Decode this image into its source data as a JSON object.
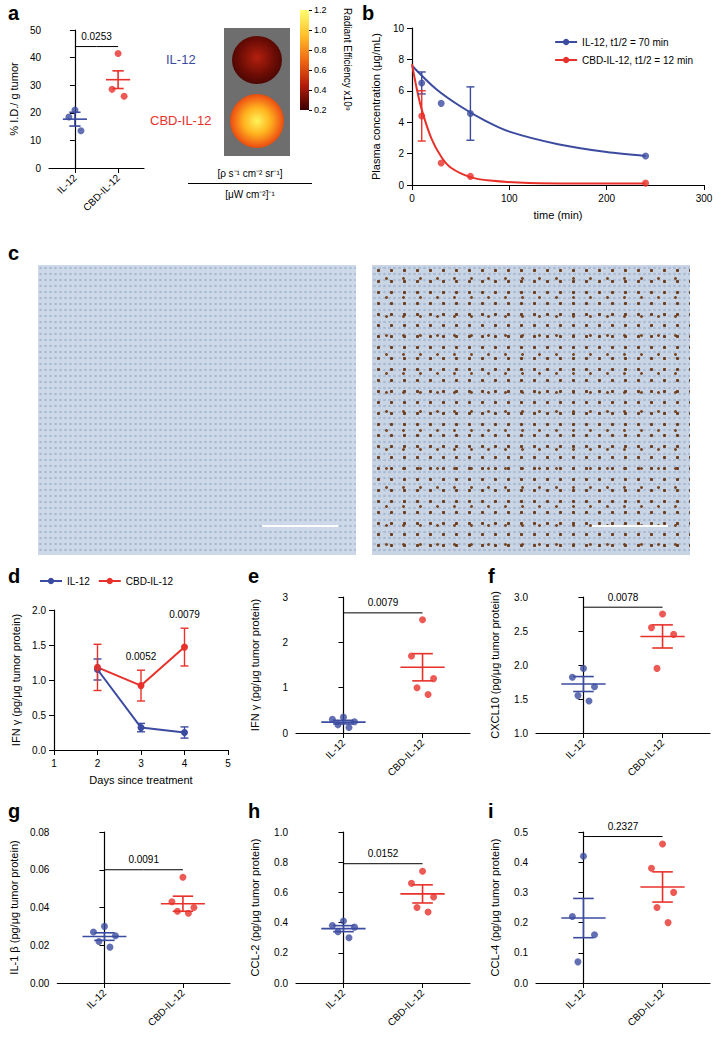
{
  "chart_data": [
    {
      "panel": "a",
      "type": "scatter",
      "categories": [
        "IL-12",
        "CBD-IL-12"
      ],
      "colors": [
        "#3b4ba0",
        "#e8312a"
      ],
      "points": [
        [
          21,
          18.5,
          13.5
        ],
        [
          41.5,
          28.5,
          26
        ]
      ],
      "means": [
        17.7,
        32
      ],
      "errors": [
        2.5,
        3.2
      ],
      "ylabel": "% I.D./ g tumor",
      "ylim": [
        0,
        50
      ],
      "yticks": [
        0,
        10,
        20,
        30,
        40,
        50
      ],
      "annotations": [
        {
          "text": "0.0253"
        }
      ]
    },
    {
      "panel": "a",
      "type": "image",
      "labels": [
        "IL-12",
        "CBD-IL-12"
      ],
      "colors": [
        "#3b4ba0",
        "#e8312a"
      ],
      "colorbar": {
        "range": [
          0.2,
          1.2
        ],
        "ticks": [
          1.2,
          {
            "value": 1,
            "label": "1.0"
          },
          0.8,
          0.6,
          0.4,
          0.2
        ],
        "label": "Radiant Efficiency x10⁹",
        "units": [
          "[ρ s⁻¹ cm⁻² sr⁻¹]",
          "[μW cm⁻²]⁻¹"
        ]
      }
    },
    {
      "panel": "b",
      "type": "line",
      "xlabel": "time (min)",
      "ylabel": "Plasma concentration (μg/mL)",
      "xlim": [
        0,
        300
      ],
      "xticks": [
        0,
        100,
        200,
        300
      ],
      "ylim": [
        0,
        10
      ],
      "yticks": [
        0,
        2,
        4,
        6,
        8,
        10
      ],
      "legend": "upper right",
      "series": [
        {
          "name": "IL-12, t1/2 = 70 min",
          "color": "#3b4ba0",
          "x": [
            10,
            30,
            60,
            240
          ],
          "values": [
            6.5,
            5.2,
            4.55,
            1.85
          ],
          "errors": [
            0.7,
            null,
            1.7,
            null
          ],
          "fit_x": [
            0,
            25,
            50,
            75,
            100,
            150,
            200,
            240
          ],
          "fit": [
            7.6,
            6.1,
            5.0,
            4.1,
            3.4,
            2.6,
            2.1,
            1.85
          ]
        },
        {
          "name": "CBD-IL-12, t1/2 = 12 min",
          "color": "#e8312a",
          "x": [
            10,
            30,
            60,
            240
          ],
          "values": [
            4.4,
            1.4,
            0.55,
            0.12
          ],
          "errors": [
            1.6,
            null,
            null,
            null
          ],
          "fit_x": [
            0,
            5,
            10,
            20,
            30,
            40,
            60,
            80,
            120,
            180,
            240
          ],
          "fit": [
            7.7,
            6.1,
            4.8,
            2.95,
            1.8,
            1.1,
            0.5,
            0.28,
            0.13,
            0.1,
            0.1
          ]
        }
      ]
    },
    {
      "panel": "c",
      "type": "image"
    },
    {
      "panel": "d",
      "type": "line",
      "xlabel": "Days since treatment",
      "ylabel": "IFN γ (pg/μg tumor protein)",
      "xlim": [
        1,
        5
      ],
      "xticks": [
        1,
        2,
        3,
        4,
        5
      ],
      "ylim": [
        0,
        2
      ],
      "yticks": [
        {
          "value": 0,
          "label": "0.0"
        },
        0.5,
        {
          "value": 1,
          "label": "1.0"
        },
        1.5,
        {
          "value": 2,
          "label": "2.0"
        }
      ],
      "legend": "top",
      "series": [
        {
          "name": "IL-12",
          "color": "#3b4ba0",
          "x": [
            2,
            3,
            4
          ],
          "values": [
            1.15,
            0.32,
            0.25
          ],
          "errors": [
            0.15,
            0.06,
            0.08
          ]
        },
        {
          "name": "CBD-IL-12",
          "color": "#e8312a",
          "x": [
            2,
            3,
            4
          ],
          "values": [
            1.18,
            0.92,
            1.47
          ],
          "errors": [
            0.33,
            0.22,
            0.27
          ]
        }
      ],
      "annotations": [
        {
          "text": "0.0052",
          "x": 3
        },
        {
          "text": "0.0079",
          "x": 4
        }
      ]
    },
    {
      "panel": "e",
      "type": "scatter",
      "categories": [
        "IL-12",
        "CBD-IL-12"
      ],
      "colors": [
        "#3b4ba0",
        "#e8312a"
      ],
      "points": [
        [
          0.35,
          0.3,
          0.25,
          0.18,
          0.12
        ],
        [
          2.5,
          1.7,
          1.2,
          1.0,
          0.85
        ]
      ],
      "means": [
        0.24,
        1.45
      ],
      "errors": [
        0.04,
        0.3
      ],
      "ylabel": "IFN γ (pg/μg tumor protein)",
      "ylim": [
        0,
        3
      ],
      "yticks": [
        0,
        1,
        2,
        3
      ],
      "annotations": [
        {
          "text": "0.0079"
        }
      ]
    },
    {
      "panel": "f",
      "type": "scatter",
      "categories": [
        "IL-12",
        "CBD-IL-12"
      ],
      "colors": [
        "#3b4ba0",
        "#e8312a"
      ],
      "points": [
        [
          1.95,
          1.82,
          1.68,
          1.55,
          1.47
        ],
        [
          2.75,
          2.55,
          2.45,
          1.95
        ]
      ],
      "means": [
        1.72,
        2.42
      ],
      "errors": [
        0.11,
        0.17
      ],
      "ylabel": "CXCL10 (pg/μg tumor protein)",
      "ylim": [
        1,
        3
      ],
      "yticks": [
        {
          "value": 1,
          "label": "1.0"
        },
        1.5,
        {
          "value": 2,
          "label": "2.0"
        },
        2.5,
        {
          "value": 3,
          "label": "3.0"
        }
      ],
      "annotations": [
        {
          "text": "0.0078"
        }
      ]
    },
    {
      "panel": "g",
      "type": "scatter",
      "categories": [
        "IL-12",
        "CBD-IL-12"
      ],
      "colors": [
        "#3b4ba0",
        "#e8312a"
      ],
      "points": [
        [
          0.03,
          0.027,
          0.025,
          0.022,
          0.019
        ],
        [
          0.056,
          0.043,
          0.04,
          0.038,
          0.037
        ]
      ],
      "means": [
        0.0246,
        0.042
      ],
      "errors": [
        0.002,
        0.004
      ],
      "ylabel": "IL-1 β (pg/μg tumor protein)",
      "ylim": [
        0,
        0.08
      ],
      "yticks": [
        {
          "value": 0,
          "label": "0.00"
        },
        0.02,
        0.04,
        0.06,
        0.08
      ],
      "annotations": [
        {
          "text": "0.0091"
        }
      ]
    },
    {
      "panel": "h",
      "type": "scatter",
      "categories": [
        "IL-12",
        "CBD-IL-12"
      ],
      "colors": [
        "#3b4ba0",
        "#e8312a"
      ],
      "points": [
        [
          0.41,
          0.38,
          0.37,
          0.34,
          0.3
        ],
        [
          0.74,
          0.66,
          0.57,
          0.5,
          0.47
        ]
      ],
      "means": [
        0.36,
        0.59
      ],
      "errors": [
        0.02,
        0.06
      ],
      "ylabel": "CCL-2 (pg/μg tumor protein)",
      "ylim": [
        0,
        1
      ],
      "yticks": [
        {
          "value": 0,
          "label": "0.0"
        },
        0.2,
        0.4,
        0.6,
        0.8,
        {
          "value": 1,
          "label": "1.0"
        }
      ],
      "annotations": [
        {
          "text": "0.0152"
        }
      ]
    },
    {
      "panel": "i",
      "type": "scatter",
      "categories": [
        "IL-12",
        "CBD-IL-12"
      ],
      "colors": [
        "#3b4ba0",
        "#e8312a"
      ],
      "points": [
        [
          0.42,
          0.22,
          0.16,
          0.07
        ],
        [
          0.46,
          0.38,
          0.3,
          0.25,
          0.2
        ]
      ],
      "means": [
        0.215,
        0.318
      ],
      "errors": [
        0.065,
        0.05
      ],
      "ylabel": "CCL-4 (pg/μg tumor protein)",
      "ylim": [
        0,
        0.5
      ],
      "yticks": [
        {
          "value": 0,
          "label": "0.0"
        },
        0.1,
        0.2,
        0.3,
        0.4,
        0.5
      ],
      "annotations": [
        {
          "text": "0.2327"
        }
      ]
    }
  ]
}
